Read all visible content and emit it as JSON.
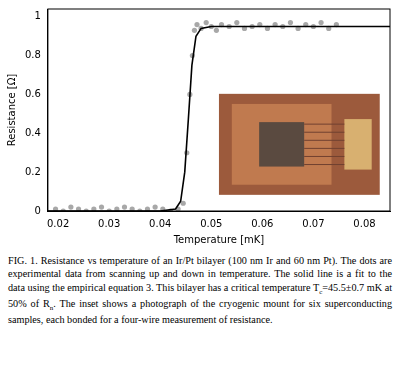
{
  "chart_data": {
    "type": "scatter",
    "x_label": "Temperature [mK]",
    "y_label": "Resistance [Ω]",
    "xlim": [
      0.018,
      0.085
    ],
    "xticks": [
      0.02,
      0.03,
      0.04,
      0.05,
      0.06,
      0.07,
      0.08
    ],
    "ylim": [
      0,
      1.04
    ],
    "yticks": [
      0,
      0.2,
      0.4,
      0.6,
      0.8,
      1
    ],
    "grid": false,
    "series": [
      {
        "type": "scatter",
        "color": "#a8a8a8",
        "marker": "circle",
        "x": [
          0.0195,
          0.021,
          0.0225,
          0.024,
          0.0255,
          0.027,
          0.0285,
          0.03,
          0.0315,
          0.033,
          0.0345,
          0.036,
          0.0375,
          0.039,
          0.0405,
          0.042,
          0.0435,
          0.0445,
          0.0452,
          0.0458,
          0.0463,
          0.0467,
          0.0472,
          0.048,
          0.049,
          0.05,
          0.051,
          0.052,
          0.0535,
          0.055,
          0.0565,
          0.058,
          0.0595,
          0.061,
          0.0625,
          0.064,
          0.0655,
          0.067,
          0.0685,
          0.07,
          0.0715,
          0.073,
          0.0745
        ],
        "values": [
          0.01,
          0.0,
          0.02,
          0.01,
          0.0,
          0.01,
          0.02,
          0.0,
          0.01,
          0.02,
          0.01,
          0.0,
          0.01,
          0.02,
          0.01,
          0.0,
          0.01,
          0.04,
          0.3,
          0.6,
          0.8,
          0.93,
          0.96,
          0.94,
          0.97,
          0.95,
          0.93,
          0.96,
          0.95,
          0.97,
          0.94,
          0.95,
          0.96,
          0.94,
          0.96,
          0.95,
          0.97,
          0.94,
          0.96,
          0.95,
          0.97,
          0.94,
          0.96
        ]
      },
      {
        "type": "line",
        "color": "#000000",
        "marker": "none",
        "line_style": "solid",
        "x": [
          0.018,
          0.04,
          0.043,
          0.044,
          0.0448,
          0.0455,
          0.0462,
          0.047,
          0.048,
          0.05,
          0.085
        ],
        "values": [
          0,
          0,
          0.01,
          0.05,
          0.2,
          0.47,
          0.75,
          0.9,
          0.94,
          0.95,
          0.95
        ]
      }
    ]
  },
  "caption": {
    "label": "FIG. 1.",
    "parts": [
      {
        "text": " Resistance vs temperature of an Ir/Pt bilayer (100 nm Ir and 60 nm Pt). The dots are experimental data from scanning up and down in temperature. The solid line is a fit to the data using the empirical equation 3. This bilayer has a critical temperature T"
      },
      {
        "sub": "c"
      },
      {
        "text": "=45.5±0.7 mK at 50% of R"
      },
      {
        "sub": "n"
      },
      {
        "text": ". The inset shows a photograph of the cryogenic mount for six superconducting samples, each bonded for a four-wire measurement of resistance."
      }
    ]
  }
}
